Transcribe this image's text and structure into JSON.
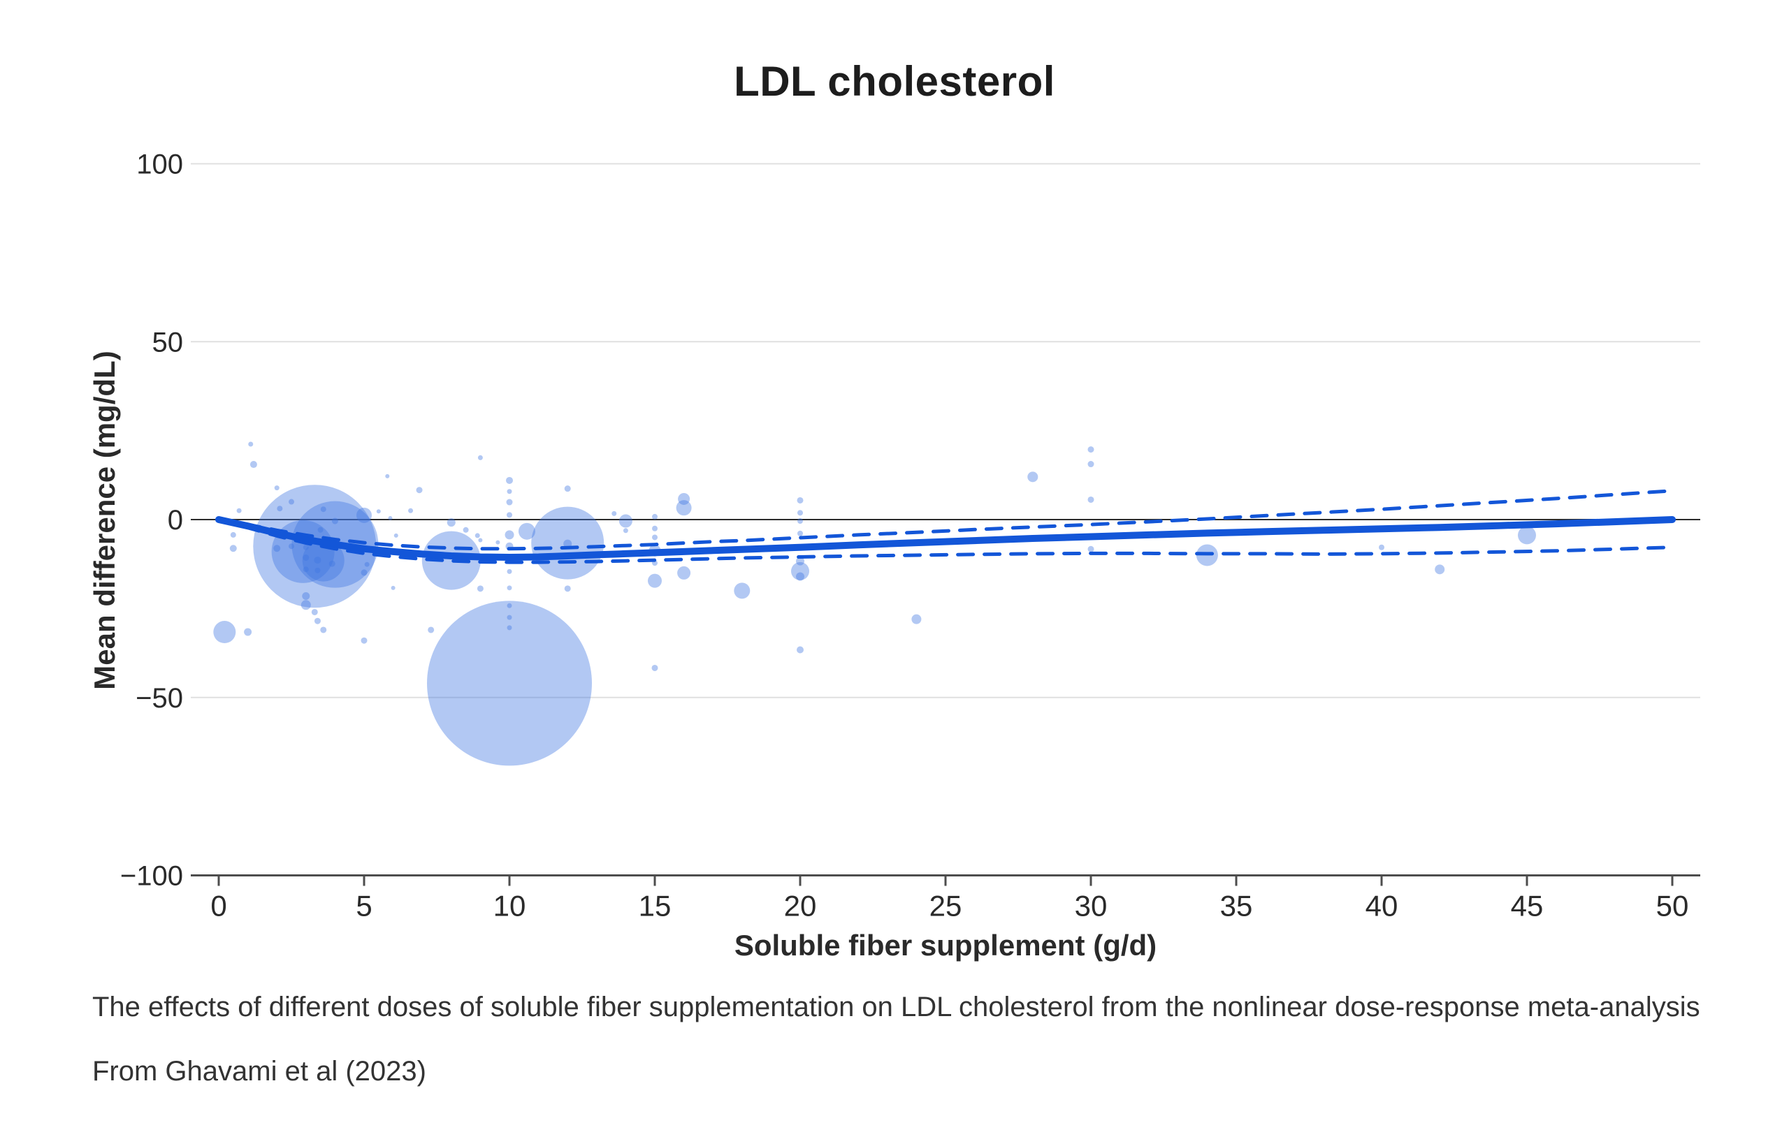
{
  "title": "LDL cholesterol",
  "caption": {
    "line1": "The effects of different doses of soluble fiber supplementation on LDL cholesterol from the nonlinear dose-response meta-analysis",
    "line2": "From Ghavami et al (2023)"
  },
  "colors": {
    "curve_blue": "#1356d8",
    "bubble_fill": "rgba(62,118,224,0.40)",
    "grid_light": "#e0e0e0",
    "zero_line": "#2b2b2b",
    "axis_line": "#4d4d4d",
    "tick_text": "#2a2a2a",
    "background": "#ffffff"
  },
  "chart_data": {
    "type": "scatter",
    "subtype": "bubble-dose-response-meta-analysis",
    "title": "LDL cholesterol",
    "xlabel": "Soluble fiber supplement (g/d)",
    "ylabel": "Mean difference (mg/dL)",
    "xlim": [
      0,
      50
    ],
    "ylim": [
      -100,
      100
    ],
    "x_ticks": [
      0,
      5,
      10,
      15,
      20,
      25,
      30,
      35,
      40,
      45,
      50
    ],
    "x_tick_labels": [
      "0",
      "5",
      "10",
      "15",
      "20",
      "25",
      "30",
      "35",
      "40",
      "45",
      "50"
    ],
    "y_ticks": [
      100,
      50,
      0,
      -50,
      -100
    ],
    "y_tick_labels": [
      "100",
      "50",
      "0",
      "−50",
      "−100"
    ],
    "grid": "horizontal-only",
    "legend": "none",
    "series": [
      {
        "name": "pooled-dose-response-curve",
        "style": "solid",
        "points": [
          [
            0,
            0
          ],
          [
            1,
            -1.8
          ],
          [
            2,
            -3.8
          ],
          [
            3,
            -5.6
          ],
          [
            4,
            -7.0
          ],
          [
            5,
            -8.2
          ],
          [
            6,
            -9.0
          ],
          [
            7,
            -9.7
          ],
          [
            8,
            -10.2
          ],
          [
            9,
            -10.5
          ],
          [
            10,
            -10.6
          ],
          [
            11,
            -10.5
          ],
          [
            12,
            -10.2
          ],
          [
            13,
            -9.9
          ],
          [
            14,
            -9.6
          ],
          [
            15,
            -9.3
          ],
          [
            16,
            -9.0
          ],
          [
            17,
            -8.7
          ],
          [
            18,
            -8.4
          ],
          [
            20,
            -7.8
          ],
          [
            22,
            -7.1
          ],
          [
            24,
            -6.5
          ],
          [
            26,
            -5.9
          ],
          [
            28,
            -5.3
          ],
          [
            30,
            -4.8
          ],
          [
            32,
            -4.3
          ],
          [
            34,
            -3.8
          ],
          [
            36,
            -3.4
          ],
          [
            38,
            -3.0
          ],
          [
            40,
            -2.6
          ],
          [
            42,
            -2.2
          ],
          [
            44,
            -1.7
          ],
          [
            46,
            -1.2
          ],
          [
            48,
            -0.6
          ],
          [
            50,
            0.0
          ]
        ]
      },
      {
        "name": "upper-95ci",
        "style": "dashed",
        "points": [
          [
            0,
            0
          ],
          [
            1,
            -1.4
          ],
          [
            2,
            -3.0
          ],
          [
            3,
            -4.4
          ],
          [
            4,
            -5.6
          ],
          [
            5,
            -6.5
          ],
          [
            6,
            -7.2
          ],
          [
            7,
            -7.7
          ],
          [
            8,
            -8.0
          ],
          [
            9,
            -8.2
          ],
          [
            10,
            -8.2
          ],
          [
            11,
            -8.1
          ],
          [
            12,
            -7.9
          ],
          [
            13,
            -7.6
          ],
          [
            14,
            -7.3
          ],
          [
            15,
            -7.0
          ],
          [
            16,
            -6.6
          ],
          [
            17,
            -6.2
          ],
          [
            18,
            -5.9
          ],
          [
            20,
            -5.1
          ],
          [
            22,
            -4.3
          ],
          [
            24,
            -3.6
          ],
          [
            26,
            -2.8
          ],
          [
            28,
            -2.1
          ],
          [
            30,
            -1.4
          ],
          [
            32,
            -0.6
          ],
          [
            34,
            0.2
          ],
          [
            36,
            1.1
          ],
          [
            38,
            2.0
          ],
          [
            40,
            2.9
          ],
          [
            42,
            3.9
          ],
          [
            44,
            4.9
          ],
          [
            46,
            5.9
          ],
          [
            48,
            7.0
          ],
          [
            50,
            8.1
          ]
        ]
      },
      {
        "name": "lower-95ci",
        "style": "dashed",
        "points": [
          [
            0,
            0
          ],
          [
            1,
            -2.3
          ],
          [
            2,
            -4.6
          ],
          [
            3,
            -6.6
          ],
          [
            4,
            -8.2
          ],
          [
            5,
            -9.5
          ],
          [
            6,
            -10.4
          ],
          [
            7,
            -11.1
          ],
          [
            8,
            -11.6
          ],
          [
            9,
            -11.9
          ],
          [
            10,
            -12.0
          ],
          [
            11,
            -12.0
          ],
          [
            12,
            -11.9
          ],
          [
            13,
            -11.8
          ],
          [
            14,
            -11.6
          ],
          [
            15,
            -11.4
          ],
          [
            16,
            -11.2
          ],
          [
            17,
            -11.0
          ],
          [
            18,
            -10.8
          ],
          [
            20,
            -10.5
          ],
          [
            22,
            -10.2
          ],
          [
            24,
            -10.0
          ],
          [
            26,
            -9.8
          ],
          [
            28,
            -9.6
          ],
          [
            30,
            -9.5
          ],
          [
            32,
            -9.5
          ],
          [
            34,
            -9.6
          ],
          [
            36,
            -9.6
          ],
          [
            38,
            -9.7
          ],
          [
            40,
            -9.6
          ],
          [
            42,
            -9.4
          ],
          [
            44,
            -9.1
          ],
          [
            46,
            -8.8
          ],
          [
            48,
            -8.3
          ],
          [
            50,
            -7.8
          ]
        ]
      }
    ],
    "bubbles_format": [
      "dose_g_per_d",
      "mean_difference_mg_dL",
      "radius_px"
    ],
    "bubbles": [
      [
        10,
        -46,
        118
      ],
      [
        3.3,
        -7.5,
        88
      ],
      [
        4,
        -7,
        62
      ],
      [
        12,
        -6.6,
        52
      ],
      [
        2.9,
        -9,
        45
      ],
      [
        8,
        -11.5,
        42
      ],
      [
        3.6,
        -11.5,
        30
      ],
      [
        0.2,
        -31.6,
        16
      ],
      [
        34,
        -10,
        15.5
      ],
      [
        45,
        -4.4,
        13
      ],
      [
        20,
        -14.5,
        13
      ],
      [
        10.6,
        -3.3,
        12
      ],
      [
        18,
        -20,
        11.5
      ],
      [
        16,
        3.3,
        11
      ],
      [
        5,
        1.2,
        11
      ],
      [
        15,
        -17.2,
        10
      ],
      [
        14,
        -0.4,
        9.5
      ],
      [
        16,
        -15,
        9.5
      ],
      [
        15,
        -8.7,
        8.5
      ],
      [
        16,
        5.8,
        8.5
      ],
      [
        28,
        12,
        7.5
      ],
      [
        24,
        -28,
        7
      ],
      [
        42,
        -14,
        7
      ],
      [
        3,
        -24,
        7
      ],
      [
        10,
        -4.3,
        6.5
      ],
      [
        20,
        -11.7,
        6
      ],
      [
        20,
        -16,
        6
      ],
      [
        12,
        -6.8,
        6
      ],
      [
        8,
        -0.8,
        6
      ],
      [
        1,
        -31.6,
        5.5
      ],
      [
        3,
        -21.5,
        5.5
      ],
      [
        10,
        -7.5,
        5.5
      ],
      [
        1.2,
        15.5,
        5
      ],
      [
        0.5,
        -8.1,
        5
      ],
      [
        2,
        -8.1,
        5
      ],
      [
        3.4,
        -11.4,
        5
      ],
      [
        20,
        -36.6,
        5
      ],
      [
        10,
        11,
        5
      ],
      [
        4,
        -0.4,
        4.5
      ],
      [
        3.9,
        -12.4,
        4.5
      ],
      [
        3,
        -10.7,
        4.5
      ],
      [
        5,
        -14.9,
        4.5
      ],
      [
        6.9,
        8.3,
        4.5
      ],
      [
        12,
        8.7,
        4.5
      ],
      [
        12,
        -19.4,
        4.5
      ],
      [
        9,
        -19.4,
        4.5
      ],
      [
        7.3,
        -31,
        4.5
      ],
      [
        15,
        -41.7,
        4.5
      ],
      [
        20,
        5.4,
        4.5
      ],
      [
        30,
        19.7,
        4.5
      ],
      [
        30,
        15.6,
        4.5
      ],
      [
        30,
        5.6,
        4.5
      ],
      [
        30,
        -8.3,
        4.5
      ],
      [
        3.3,
        -26,
        4.5
      ],
      [
        3.4,
        -28.5,
        4.5
      ],
      [
        3.6,
        -31,
        4.5
      ],
      [
        5,
        -34,
        4.5
      ],
      [
        10,
        4.9,
        4.5
      ],
      [
        2.1,
        3.1,
        4
      ],
      [
        2.5,
        5,
        4
      ],
      [
        3.6,
        2.9,
        4
      ],
      [
        0.5,
        -4.3,
        4
      ],
      [
        3,
        -14,
        4
      ],
      [
        3.4,
        -14.3,
        4
      ],
      [
        2.5,
        -7.5,
        4
      ],
      [
        3,
        -7.8,
        4
      ],
      [
        3.5,
        -2.9,
        4
      ],
      [
        10,
        1.3,
        4
      ],
      [
        15,
        0.8,
        4
      ],
      [
        15,
        -2.5,
        4
      ],
      [
        15,
        -5,
        4
      ],
      [
        15,
        -12.2,
        4
      ],
      [
        20,
        1.9,
        4
      ],
      [
        20,
        -0.4,
        4
      ],
      [
        20,
        -3.9,
        4
      ],
      [
        40,
        -7.8,
        4
      ],
      [
        8.5,
        -2.9,
        4
      ],
      [
        1.1,
        21.2,
        3.5
      ],
      [
        2,
        8.9,
        3.5
      ],
      [
        0.7,
        2.5,
        3.5
      ],
      [
        10,
        7.9,
        3.5
      ],
      [
        10,
        -14.6,
        3.5
      ],
      [
        10,
        -19.2,
        3.5
      ],
      [
        10,
        -24.2,
        3.5
      ],
      [
        10,
        -27.5,
        3.5
      ],
      [
        10,
        -30.4,
        3.5
      ],
      [
        13.6,
        1.7,
        3.5
      ],
      [
        14,
        -3.1,
        3.5
      ],
      [
        6.6,
        2.5,
        3.5
      ],
      [
        5.1,
        -12.6,
        3.5
      ],
      [
        8.9,
        -4.5,
        3.5
      ],
      [
        9,
        17.4,
        3.5
      ],
      [
        5.8,
        12.2,
        3
      ],
      [
        5.9,
        0.4,
        3
      ],
      [
        6.1,
        -4.5,
        3
      ],
      [
        9,
        -5.8,
        3
      ],
      [
        9.6,
        -6.4,
        3
      ],
      [
        6,
        -19.2,
        3
      ],
      [
        5.5,
        2.3,
        3
      ]
    ]
  }
}
